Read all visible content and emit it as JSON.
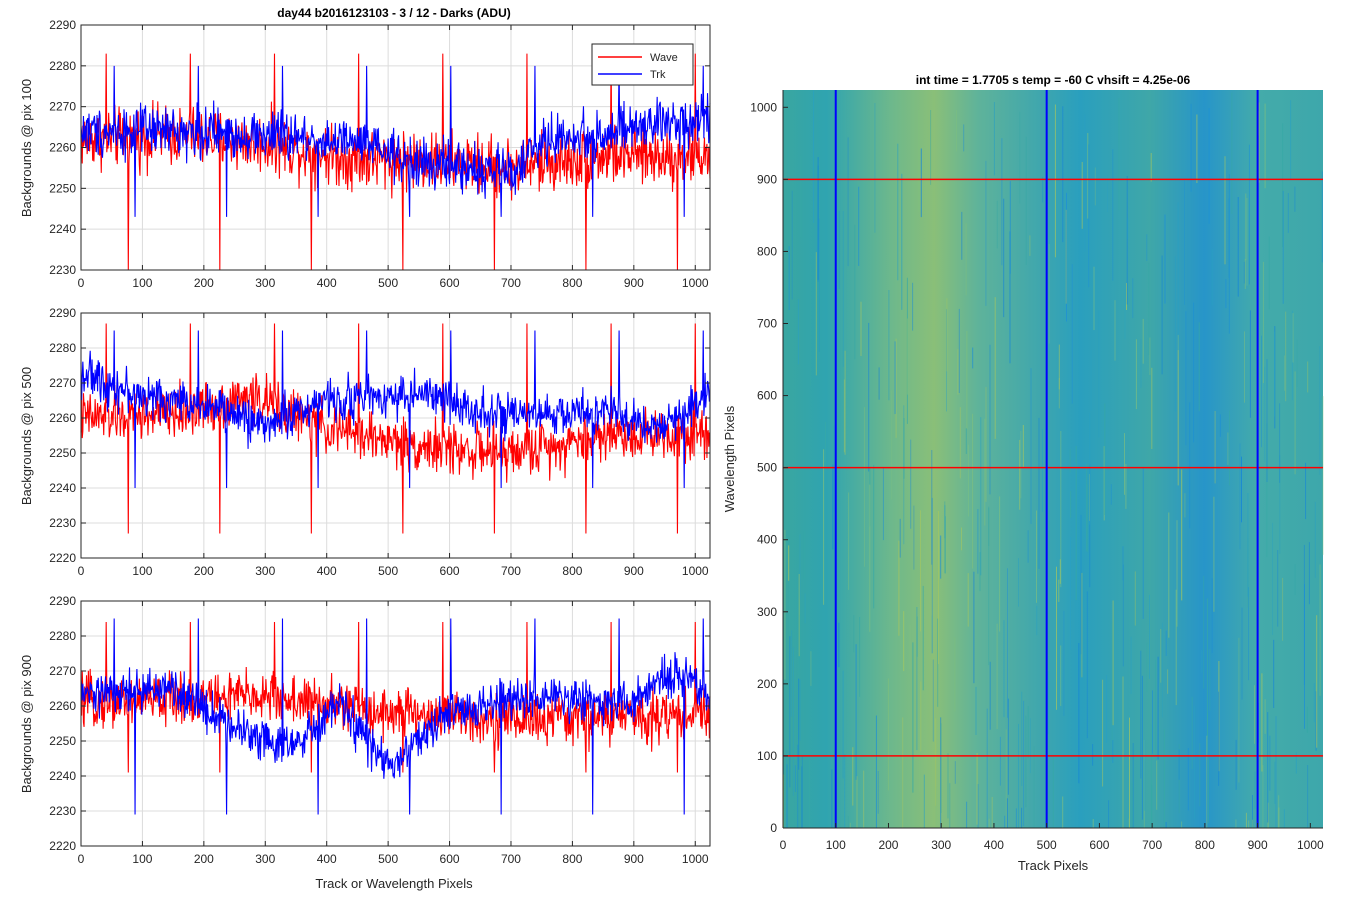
{
  "chart_data": [
    {
      "type": "line",
      "title": "day44 b2016123103 - 3 / 12 - Darks (ADU)",
      "ylabel": "Backgrounds @ pix 100",
      "xlabel": "",
      "xlim": [
        0,
        1024
      ],
      "ylim": [
        2230,
        2290
      ],
      "xticks": [
        0,
        100,
        200,
        300,
        400,
        500,
        600,
        700,
        800,
        900,
        1000
      ],
      "yticks": [
        2230,
        2240,
        2250,
        2260,
        2270,
        2280,
        2290
      ],
      "grid": true,
      "legend": {
        "position": "top-right",
        "entries": [
          "Wave",
          "Trk"
        ]
      },
      "series": [
        {
          "name": "Wave",
          "color": "#ff0000",
          "mean": 2261,
          "noise": 6,
          "min": 2230,
          "max": 2283,
          "trend": [
            [
              0,
              2262
            ],
            [
              150,
              2263
            ],
            [
              300,
              2261
            ],
            [
              450,
              2257
            ],
            [
              550,
              2257
            ],
            [
              700,
              2255
            ],
            [
              850,
              2258
            ],
            [
              1024,
              2258
            ]
          ]
        },
        {
          "name": "Trk",
          "color": "#0000ff",
          "mean": 2263,
          "noise": 5,
          "min": 2243,
          "max": 2280,
          "trend": [
            [
              0,
              2264
            ],
            [
              150,
              2264
            ],
            [
              300,
              2263
            ],
            [
              450,
              2261
            ],
            [
              550,
              2256
            ],
            [
              700,
              2254
            ],
            [
              760,
              2262
            ],
            [
              850,
              2263
            ],
            [
              1024,
              2268
            ]
          ]
        }
      ]
    },
    {
      "type": "line",
      "title": "",
      "ylabel": "Backgrounds @ pix 500",
      "xlabel": "",
      "xlim": [
        0,
        1024
      ],
      "ylim": [
        2220,
        2290
      ],
      "xticks": [
        0,
        100,
        200,
        300,
        400,
        500,
        600,
        700,
        800,
        900,
        1000
      ],
      "yticks": [
        2220,
        2230,
        2240,
        2250,
        2260,
        2270,
        2280,
        2290
      ],
      "grid": true,
      "series": [
        {
          "name": "Wave",
          "color": "#ff0000",
          "mean": 2258,
          "noise": 6,
          "min": 2227,
          "max": 2287,
          "trend": [
            [
              0,
              2260
            ],
            [
              150,
              2261
            ],
            [
              280,
              2266
            ],
            [
              400,
              2257
            ],
            [
              550,
              2252
            ],
            [
              700,
              2250
            ],
            [
              850,
              2255
            ],
            [
              1024,
              2256
            ]
          ]
        },
        {
          "name": "Trk",
          "color": "#0000ff",
          "mean": 2264,
          "noise": 5,
          "min": 2240,
          "max": 2285,
          "trend": [
            [
              0,
              2273
            ],
            [
              100,
              2266
            ],
            [
              200,
              2264
            ],
            [
              300,
              2258
            ],
            [
              400,
              2265
            ],
            [
              550,
              2267
            ],
            [
              700,
              2260
            ],
            [
              850,
              2262
            ],
            [
              950,
              2257
            ],
            [
              1024,
              2268
            ]
          ]
        }
      ]
    },
    {
      "type": "line",
      "title": "",
      "ylabel": "Backgrounds @ pix 900",
      "xlabel": "Track or Wavelength Pixels",
      "xlim": [
        0,
        1024
      ],
      "ylim": [
        2220,
        2290
      ],
      "xticks": [
        0,
        100,
        200,
        300,
        400,
        500,
        600,
        700,
        800,
        900,
        1000
      ],
      "yticks": [
        2220,
        2230,
        2240,
        2250,
        2260,
        2270,
        2280,
        2290
      ],
      "grid": true,
      "series": [
        {
          "name": "Wave",
          "color": "#ff0000",
          "mean": 2260,
          "noise": 6,
          "min": 2241,
          "max": 2284,
          "trend": [
            [
              0,
              2261
            ],
            [
              150,
              2262
            ],
            [
              300,
              2263
            ],
            [
              450,
              2259
            ],
            [
              600,
              2257
            ],
            [
              750,
              2256
            ],
            [
              900,
              2257
            ],
            [
              1024,
              2258
            ]
          ]
        },
        {
          "name": "Trk",
          "color": "#0000ff",
          "mean": 2257,
          "noise": 5,
          "min": 2229,
          "max": 2285,
          "trend": [
            [
              0,
              2263
            ],
            [
              150,
              2265
            ],
            [
              250,
              2254
            ],
            [
              350,
              2248
            ],
            [
              420,
              2261
            ],
            [
              500,
              2242
            ],
            [
              600,
              2258
            ],
            [
              700,
              2262
            ],
            [
              800,
              2262
            ],
            [
              900,
              2261
            ],
            [
              970,
              2270
            ],
            [
              1024,
              2262
            ]
          ]
        }
      ]
    },
    {
      "type": "heatmap",
      "title": "int time = 1.7705 s    temp = -60 C    vhsift = 4.25e-06",
      "xlabel": "Track Pixels",
      "ylabel": "Wavelength Pixels",
      "xlim": [
        0,
        1024
      ],
      "ylim": [
        0,
        1024
      ],
      "xticks": [
        0,
        100,
        200,
        300,
        400,
        500,
        600,
        700,
        800,
        900,
        1000
      ],
      "yticks": [
        0,
        100,
        200,
        300,
        400,
        500,
        600,
        700,
        800,
        900,
        1000
      ],
      "colormap": "parula",
      "horizontal_lines": {
        "color": "#ff0000",
        "values": [
          100,
          500,
          900
        ]
      },
      "vertical_lines": {
        "color": "#0000ff",
        "values": [
          100,
          500,
          900
        ]
      }
    }
  ]
}
